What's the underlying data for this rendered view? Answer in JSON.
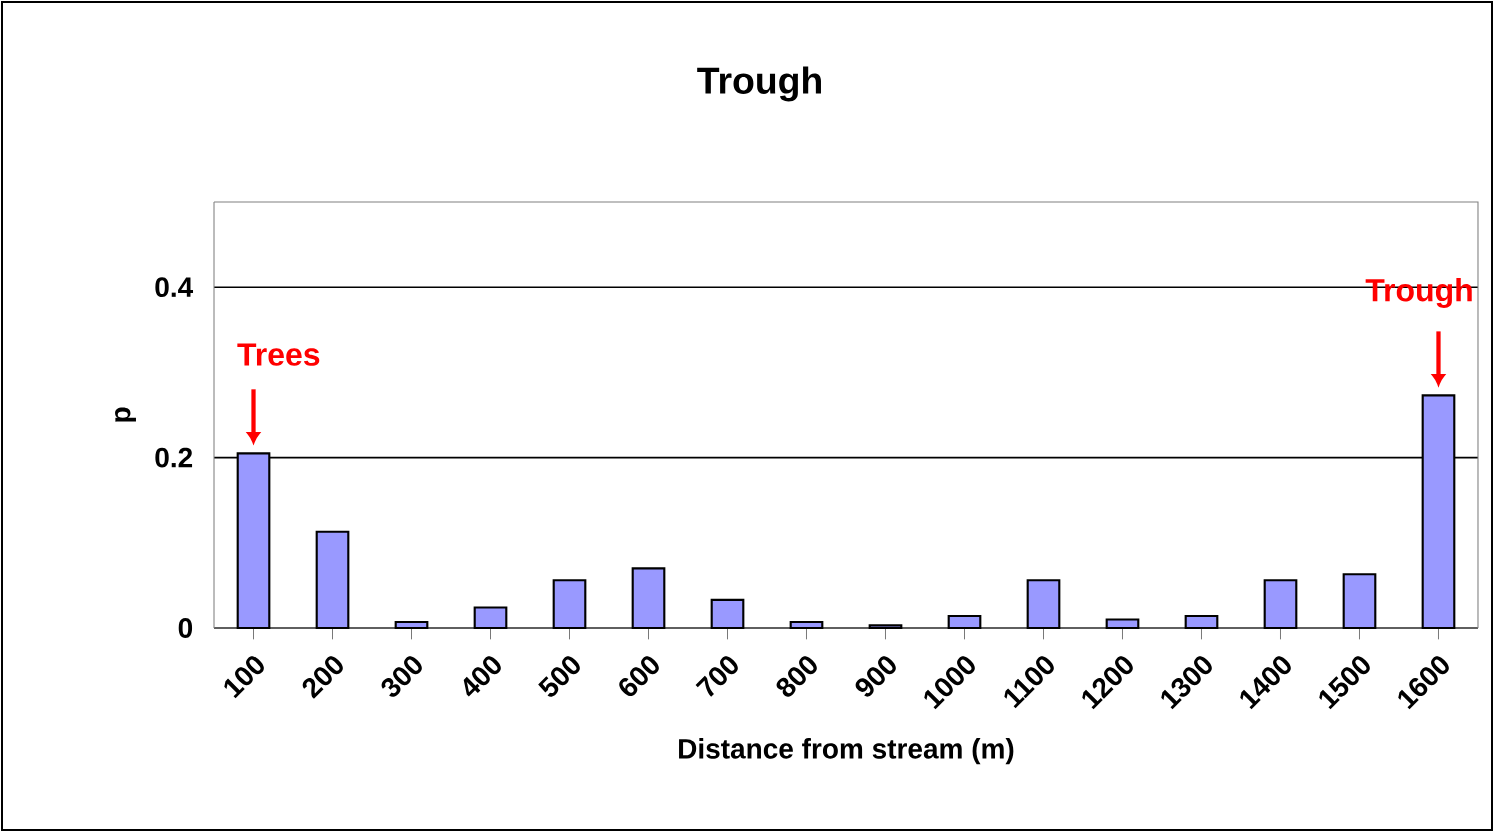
{
  "chart_data": {
    "type": "bar",
    "title": "Trough",
    "xlabel": "Distance from stream (m)",
    "ylabel": "p",
    "categories": [
      "100",
      "200",
      "300",
      "400",
      "500",
      "600",
      "700",
      "800",
      "900",
      "1000",
      "1100",
      "1200",
      "1300",
      "1400",
      "1500",
      "1600"
    ],
    "values": [
      0.205,
      0.113,
      0.007,
      0.024,
      0.056,
      0.07,
      0.033,
      0.007,
      0.003,
      0.014,
      0.056,
      0.01,
      0.014,
      0.056,
      0.063,
      0.273
    ],
    "color": "#9999ff",
    "ylim": [
      0,
      0.5
    ],
    "yticks": [
      0,
      0.2,
      0.4
    ],
    "grid": "y",
    "annotations": [
      {
        "text": "Trees",
        "x": "100",
        "y": 0.205
      },
      {
        "text": "Trough",
        "x": "1600",
        "y": 0.273
      }
    ]
  }
}
